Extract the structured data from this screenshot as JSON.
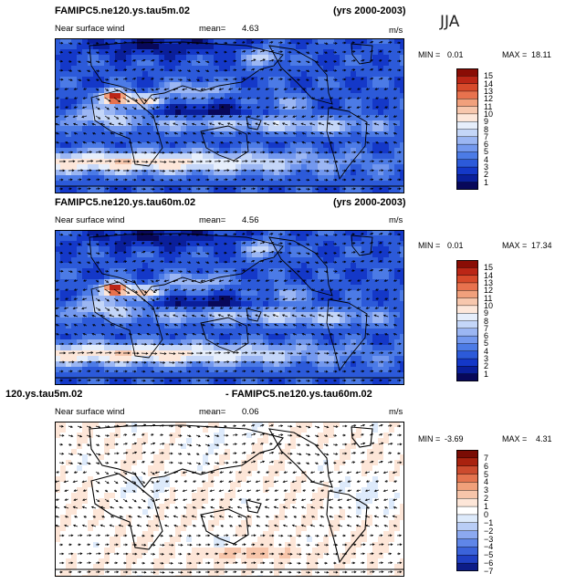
{
  "season": "JJA",
  "palette_abs": [
    "#08085a",
    "#0a1f9b",
    "#1438c8",
    "#2c5ad9",
    "#4c7be6",
    "#7398ee",
    "#9bb6f3",
    "#c4d6f8",
    "#e6eefb",
    "#fde7da",
    "#f7c7ad",
    "#f1a07c",
    "#e8724e",
    "#d74a2b",
    "#bb2616",
    "#8a0d05"
  ],
  "palette_diff": [
    "#0d1c88",
    "#2040c4",
    "#3b63da",
    "#5f86e8",
    "#8ca9f0",
    "#b9cdf6",
    "#ddeafb",
    "#ffffff",
    "#fde6d8",
    "#f7c5aa",
    "#f0a07a",
    "#e4744f",
    "#cc4b2e",
    "#a9220f",
    "#7a0c04"
  ],
  "panels": [
    {
      "title_left": "FAMIPC5.ne120.ys.tau5m.02",
      "title_right": "(yrs 2000-2003)",
      "field_label": "Near surface wind",
      "mean_label": "mean=",
      "mean_value": "4.63",
      "units": "m/s",
      "min_label": "MIN =",
      "min_value": "0.01",
      "max_label": "MAX =",
      "max_value": "18.11",
      "colorbar_ticks": [
        "15",
        "14",
        "13",
        "12",
        "11",
        "10",
        "9",
        "8",
        "7",
        "6",
        "5",
        "4",
        "3",
        "2",
        "1"
      ]
    },
    {
      "title_left": "FAMIPC5.ne120.ys.tau60m.02",
      "title_right": "(yrs 2000-2003)",
      "field_label": "Near surface wind",
      "mean_label": "mean=",
      "mean_value": "4.56",
      "units": "m/s",
      "min_label": "MIN =",
      "min_value": "0.01",
      "max_label": "MAX =",
      "max_value": "17.34",
      "colorbar_ticks": [
        "15",
        "14",
        "13",
        "12",
        "11",
        "10",
        "9",
        "8",
        "7",
        "6",
        "5",
        "4",
        "3",
        "2",
        "1"
      ]
    },
    {
      "title_left": "120.ys.tau5m.02",
      "title_right": "- FAMIPC5.ne120.ys.tau60m.02",
      "field_label": "Near surface wind",
      "mean_label": "mean=",
      "mean_value": "0.06",
      "units": "m/s",
      "min_label": "MIN =",
      "min_value": "-3.69",
      "max_label": "MAX =",
      "max_value": "4.31",
      "colorbar_ticks": [
        "7",
        "6",
        "5",
        "4",
        "3",
        "2",
        "1",
        "0",
        "−1",
        "−2",
        "−3",
        "−4",
        "−5",
        "−6",
        "−7"
      ]
    }
  ],
  "chart_data": [
    {
      "type": "heatmap",
      "title": "FAMIPC5.ne120.ys.tau5m.02 (yrs 2000-2003)",
      "variable": "Near surface wind",
      "units": "m/s",
      "season": "JJA",
      "mean": 4.63,
      "min": 0.01,
      "max": 18.11,
      "contour_levels": [
        1,
        2,
        3,
        4,
        5,
        6,
        7,
        8,
        9,
        10,
        11,
        12,
        13,
        14,
        15
      ]
    },
    {
      "type": "heatmap",
      "title": "FAMIPC5.ne120.ys.tau60m.02 (yrs 2000-2003)",
      "variable": "Near surface wind",
      "units": "m/s",
      "season": "JJA",
      "mean": 4.56,
      "min": 0.01,
      "max": 17.34,
      "contour_levels": [
        1,
        2,
        3,
        4,
        5,
        6,
        7,
        8,
        9,
        10,
        11,
        12,
        13,
        14,
        15
      ]
    },
    {
      "type": "heatmap",
      "title": "120.ys.tau5m.02 - FAMIPC5.ne120.ys.tau60m.02",
      "variable": "Near surface wind",
      "units": "m/s",
      "season": "JJA",
      "mean": 0.06,
      "min": -3.69,
      "max": 4.31,
      "contour_levels": [
        -7,
        -6,
        -5,
        -4,
        -3,
        -2,
        -1,
        0,
        1,
        2,
        3,
        4,
        5,
        6,
        7
      ]
    }
  ]
}
